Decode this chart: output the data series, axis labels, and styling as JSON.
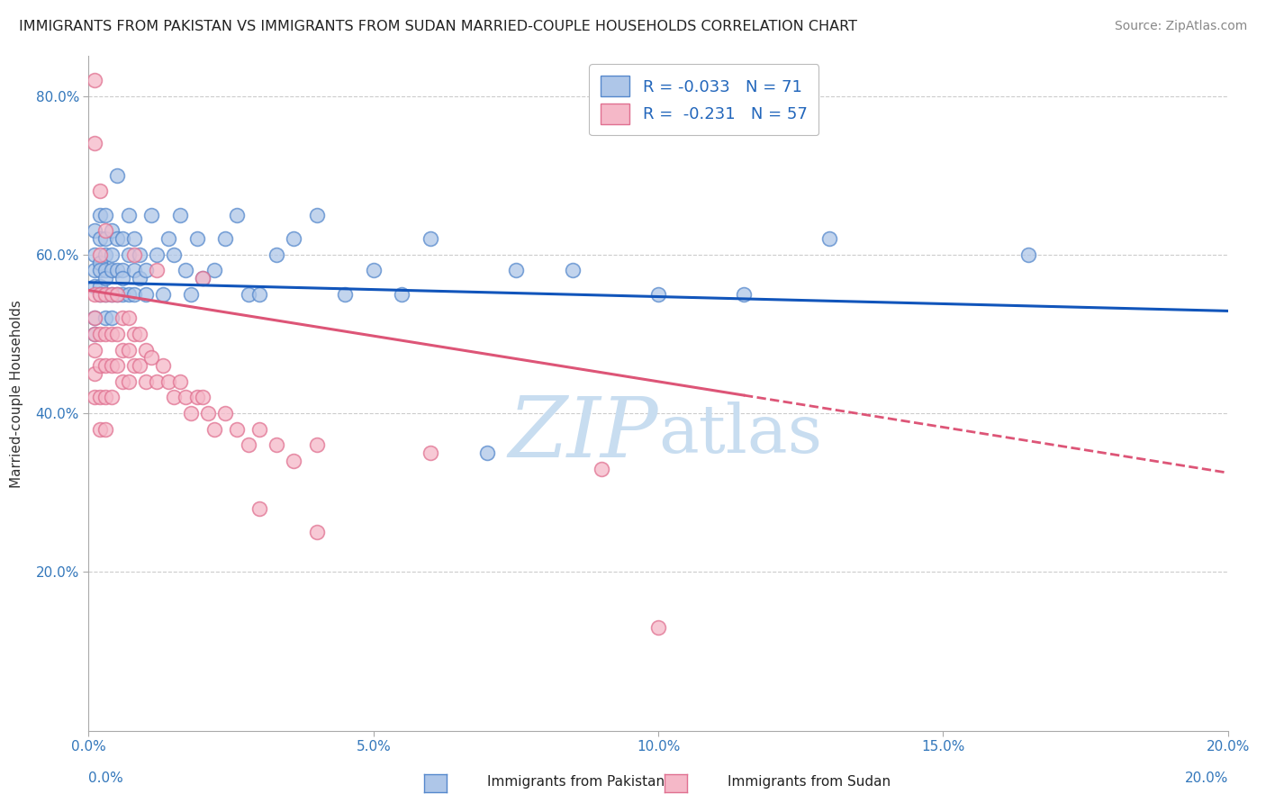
{
  "title": "IMMIGRANTS FROM PAKISTAN VS IMMIGRANTS FROM SUDAN MARRIED-COUPLE HOUSEHOLDS CORRELATION CHART",
  "source": "Source: ZipAtlas.com",
  "ylabel": "Married-couple Households",
  "xmin": 0.0,
  "xmax": 0.2,
  "ymin": 0.0,
  "ymax": 0.85,
  "yticks": [
    0.2,
    0.4,
    0.6,
    0.8
  ],
  "ytick_labels": [
    "20.0%",
    "40.0%",
    "60.0%",
    "80.0%"
  ],
  "xticks": [
    0.0,
    0.05,
    0.1,
    0.15,
    0.2
  ],
  "xtick_labels": [
    "0.0%",
    "5.0%",
    "10.0%",
    "15.0%",
    "20.0%"
  ],
  "series1_name": "Immigrants from Pakistan",
  "series2_name": "Immigrants from Sudan",
  "series1_color": "#aec6e8",
  "series2_color": "#f5b8c8",
  "series1_edge": "#5588cc",
  "series2_edge": "#e07090",
  "series1_R": -0.033,
  "series1_N": 71,
  "series2_R": -0.231,
  "series2_N": 57,
  "trendline1_color": "#1155bb",
  "trendline2_color": "#dd5577",
  "watermark_color": "#c8ddf0",
  "background_color": "#ffffff",
  "grid_color": "#cccccc",
  "trendline1_intercept": 0.565,
  "trendline1_slope": -0.18,
  "trendline2_intercept": 0.555,
  "trendline2_slope": -1.15,
  "series1_x": [
    0.001,
    0.001,
    0.001,
    0.001,
    0.001,
    0.001,
    0.002,
    0.002,
    0.002,
    0.002,
    0.002,
    0.002,
    0.003,
    0.003,
    0.003,
    0.003,
    0.003,
    0.003,
    0.003,
    0.004,
    0.004,
    0.004,
    0.004,
    0.004,
    0.005,
    0.005,
    0.005,
    0.005,
    0.006,
    0.006,
    0.006,
    0.006,
    0.007,
    0.007,
    0.007,
    0.008,
    0.008,
    0.008,
    0.009,
    0.009,
    0.01,
    0.01,
    0.011,
    0.012,
    0.013,
    0.014,
    0.015,
    0.016,
    0.017,
    0.018,
    0.019,
    0.02,
    0.022,
    0.024,
    0.026,
    0.028,
    0.03,
    0.033,
    0.036,
    0.04,
    0.045,
    0.05,
    0.055,
    0.06,
    0.07,
    0.075,
    0.085,
    0.1,
    0.115,
    0.13,
    0.165
  ],
  "series1_y": [
    0.56,
    0.6,
    0.63,
    0.58,
    0.52,
    0.5,
    0.62,
    0.59,
    0.56,
    0.65,
    0.58,
    0.55,
    0.62,
    0.65,
    0.58,
    0.6,
    0.55,
    0.52,
    0.57,
    0.6,
    0.63,
    0.58,
    0.55,
    0.52,
    0.62,
    0.58,
    0.55,
    0.7,
    0.58,
    0.55,
    0.62,
    0.57,
    0.65,
    0.6,
    0.55,
    0.62,
    0.58,
    0.55,
    0.57,
    0.6,
    0.55,
    0.58,
    0.65,
    0.6,
    0.55,
    0.62,
    0.6,
    0.65,
    0.58,
    0.55,
    0.62,
    0.57,
    0.58,
    0.62,
    0.65,
    0.55,
    0.55,
    0.6,
    0.62,
    0.65,
    0.55,
    0.58,
    0.55,
    0.62,
    0.35,
    0.58,
    0.58,
    0.55,
    0.55,
    0.62,
    0.6
  ],
  "series2_x": [
    0.001,
    0.001,
    0.001,
    0.001,
    0.001,
    0.001,
    0.002,
    0.002,
    0.002,
    0.002,
    0.002,
    0.002,
    0.003,
    0.003,
    0.003,
    0.003,
    0.003,
    0.004,
    0.004,
    0.004,
    0.004,
    0.005,
    0.005,
    0.005,
    0.006,
    0.006,
    0.006,
    0.007,
    0.007,
    0.007,
    0.008,
    0.008,
    0.009,
    0.009,
    0.01,
    0.01,
    0.011,
    0.012,
    0.013,
    0.014,
    0.015,
    0.016,
    0.017,
    0.018,
    0.019,
    0.02,
    0.021,
    0.022,
    0.024,
    0.026,
    0.028,
    0.03,
    0.033,
    0.036,
    0.04,
    0.06,
    0.09
  ],
  "series2_y": [
    0.55,
    0.52,
    0.5,
    0.48,
    0.45,
    0.42,
    0.6,
    0.55,
    0.5,
    0.46,
    0.42,
    0.38,
    0.55,
    0.5,
    0.46,
    0.42,
    0.38,
    0.55,
    0.5,
    0.46,
    0.42,
    0.55,
    0.5,
    0.46,
    0.52,
    0.48,
    0.44,
    0.52,
    0.48,
    0.44,
    0.5,
    0.46,
    0.5,
    0.46,
    0.48,
    0.44,
    0.47,
    0.44,
    0.46,
    0.44,
    0.42,
    0.44,
    0.42,
    0.4,
    0.42,
    0.42,
    0.4,
    0.38,
    0.4,
    0.38,
    0.36,
    0.38,
    0.36,
    0.34,
    0.36,
    0.35,
    0.33
  ],
  "series2_outlier_x": [
    0.001,
    0.001,
    0.002,
    0.003,
    0.008,
    0.012,
    0.02,
    0.03,
    0.04,
    0.1
  ],
  "series2_outlier_y": [
    0.82,
    0.74,
    0.68,
    0.63,
    0.6,
    0.58,
    0.57,
    0.28,
    0.25,
    0.13
  ]
}
